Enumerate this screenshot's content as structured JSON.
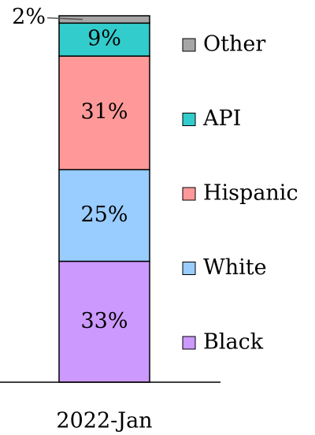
{
  "chart_data": {
    "type": "stacked_bar",
    "categories": [
      "2022-Jan"
    ],
    "series": [
      {
        "name": "Black",
        "color": "#cc99ff",
        "values": [
          33
        ],
        "value_labels": [
          "33%"
        ]
      },
      {
        "name": "White",
        "color": "#99ccff",
        "values": [
          25
        ],
        "value_labels": [
          "25%"
        ]
      },
      {
        "name": "Hispanic",
        "color": "#ff9999",
        "values": [
          31
        ],
        "value_labels": [
          "31%"
        ]
      },
      {
        "name": "API",
        "color": "#33cccc",
        "values": [
          9
        ],
        "value_labels": [
          "9%"
        ]
      },
      {
        "name": "Other",
        "color": "#a6a6a6",
        "values": [
          2
        ],
        "value_labels": [
          "2%"
        ]
      }
    ],
    "ylim": [
      0,
      100
    ],
    "legend": "right"
  }
}
